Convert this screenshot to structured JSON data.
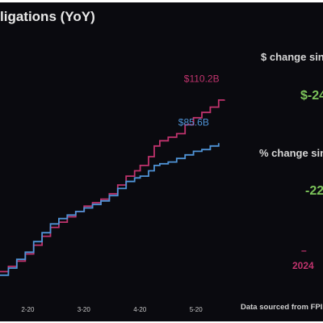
{
  "header": {
    "title": "ligations (YoY)"
  },
  "side_panel": {
    "dollar_change_label": "$ change sin",
    "dollar_change_value": "$-24",
    "pct_change_label": "% change sin",
    "pct_change_value": "-22",
    "dash": "–",
    "year_label": "2024"
  },
  "footer": {
    "source": "Data sourced from FPI"
  },
  "colors": {
    "background": "#0a0a0f",
    "series_2024": "#c0336d",
    "series_2025": "#4f93d6",
    "positive_value": "#7cc35a"
  },
  "chart_data": {
    "type": "line",
    "title": "ligations (YoY)",
    "xlabel": "",
    "ylabel": "",
    "x_ticks": [
      "2-20",
      "3-20",
      "4-20",
      "5-20"
    ],
    "x_tick_positions": [
      1.645,
      2.645,
      3.645,
      4.645
    ],
    "xlim": [
      1.15,
      5.47
    ],
    "ylim": [
      10,
      125
    ],
    "grid": false,
    "legend": "none",
    "series": [
      {
        "color": "#c0336d",
        "end_label": "$110.2B",
        "points": [
          [
            1.15,
            13
          ],
          [
            1.3,
            16
          ],
          [
            1.45,
            19
          ],
          [
            1.6,
            23
          ],
          [
            1.75,
            28
          ],
          [
            1.9,
            33
          ],
          [
            2.05,
            38
          ],
          [
            2.2,
            41
          ],
          [
            2.35,
            44
          ],
          [
            2.5,
            47
          ],
          [
            2.65,
            50
          ],
          [
            2.8,
            52
          ],
          [
            2.95,
            54
          ],
          [
            3.1,
            57
          ],
          [
            3.25,
            62
          ],
          [
            3.4,
            67
          ],
          [
            3.55,
            70
          ],
          [
            3.65,
            73
          ],
          [
            3.8,
            78
          ],
          [
            3.9,
            84
          ],
          [
            4.0,
            87
          ],
          [
            4.15,
            89
          ],
          [
            4.3,
            91
          ],
          [
            4.45,
            96
          ],
          [
            4.6,
            100
          ],
          [
            4.75,
            103
          ],
          [
            4.9,
            106
          ],
          [
            5.05,
            110
          ],
          [
            5.15,
            110.2
          ]
        ]
      },
      {
        "color": "#4f93d6",
        "end_label": "$85.6B",
        "points": [
          [
            1.15,
            11
          ],
          [
            1.3,
            15
          ],
          [
            1.45,
            20
          ],
          [
            1.6,
            24
          ],
          [
            1.75,
            30
          ],
          [
            1.9,
            35
          ],
          [
            2.05,
            40
          ],
          [
            2.2,
            43
          ],
          [
            2.35,
            45
          ],
          [
            2.5,
            47
          ],
          [
            2.65,
            49
          ],
          [
            2.8,
            51
          ],
          [
            2.95,
            53
          ],
          [
            3.1,
            56
          ],
          [
            3.25,
            60
          ],
          [
            3.4,
            64
          ],
          [
            3.55,
            66
          ],
          [
            3.65,
            67
          ],
          [
            3.8,
            70
          ],
          [
            3.9,
            73
          ],
          [
            4.0,
            74
          ],
          [
            4.15,
            75
          ],
          [
            4.3,
            77
          ],
          [
            4.45,
            79
          ],
          [
            4.6,
            81
          ],
          [
            4.75,
            82
          ],
          [
            4.9,
            84
          ],
          [
            5.05,
            85.6
          ]
        ]
      }
    ]
  }
}
